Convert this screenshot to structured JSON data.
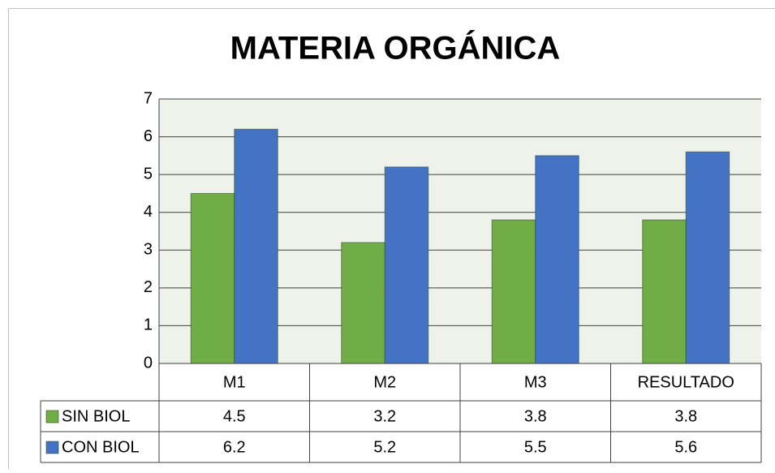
{
  "chart_data": {
    "type": "bar",
    "title": "MATERIA ORGÁNICA",
    "categories": [
      "M1",
      "M2",
      "M3",
      "RESULTADO"
    ],
    "series": [
      {
        "name": "SIN BIOL",
        "color": "#70ad47",
        "values": [
          4.5,
          3.2,
          3.8,
          3.8
        ]
      },
      {
        "name": "CON BIOL",
        "color": "#4472c4",
        "values": [
          6.2,
          5.2,
          5.5,
          5.6
        ]
      }
    ],
    "ylim": [
      0,
      7
    ],
    "yticks": [
      0,
      1,
      2,
      3,
      4,
      5,
      6,
      7
    ],
    "grid": true,
    "data_table": true
  }
}
